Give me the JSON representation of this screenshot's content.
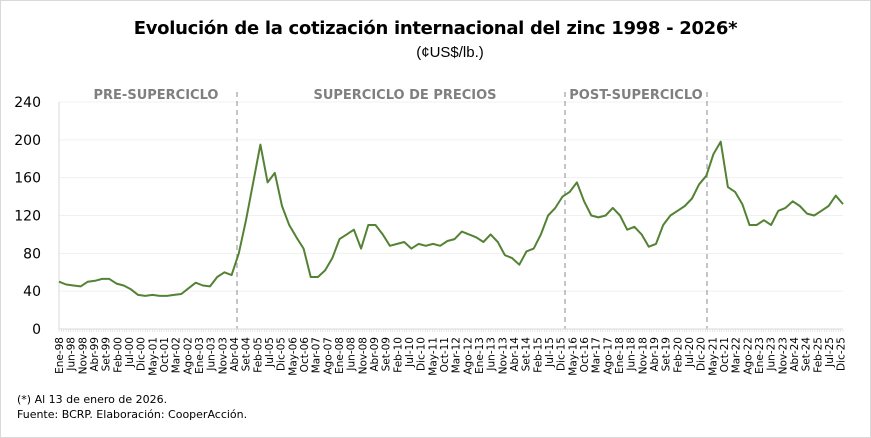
{
  "chart_data": {
    "type": "line",
    "title": "Evolución de la cotización internacional del zinc 1998 -  2026*",
    "subtitle": "(¢US$/lb.)",
    "xlabel": "",
    "ylabel": "",
    "ylim": [
      0,
      240
    ],
    "yticks": [
      0,
      40,
      80,
      120,
      160,
      200,
      240
    ],
    "grid": true,
    "legend": "none",
    "line_color": "#548235",
    "x_tick_labels": [
      "Ene-98",
      "Jun-98",
      "Nov-98",
      "Abr-99",
      "Set-99",
      "Feb-00",
      "Jul-00",
      "Dic-00",
      "May-01",
      "Oct-01",
      "Mar-02",
      "Ago-02",
      "Ene-03",
      "Jun-03",
      "Nov-03",
      "Abr-04",
      "Set-04",
      "Feb-05",
      "Jul-05",
      "Dic-05",
      "May-06",
      "Oct-06",
      "Mar-07",
      "Ago-07",
      "Ene-08",
      "Jun-08",
      "Nov-08",
      "Abr-09",
      "Set-09",
      "Feb-10",
      "Jul-10",
      "Dic-10",
      "May-11",
      "Oct-11",
      "Mar-12",
      "Ago-12",
      "Ene-13",
      "Jun-13",
      "Nov-13",
      "Abr-14",
      "Set-14",
      "Feb-15",
      "Jul-15",
      "Dic-15",
      "May-16",
      "Oct-16",
      "Mar-17",
      "Ago-17",
      "Ene-18",
      "Jun-18",
      "Nov-18",
      "Abr-19",
      "Set-19",
      "Feb-20",
      "Jul-20",
      "Dic-20",
      "May-21",
      "Oct-21",
      "Mar-22",
      "Ago-22",
      "Ene-23",
      "Jun-23",
      "Nov-23",
      "Abr-24",
      "Set-24",
      "Feb-25",
      "Jul-25",
      "Dic-25"
    ],
    "periods": [
      {
        "label": "PRE-SUPERCICLO",
        "start": "Ene-98",
        "end": "Abr-04"
      },
      {
        "label": "SUPERCICLO DE PRECIOS",
        "start": "Abr-04",
        "end": "Dic-15"
      },
      {
        "label": "POST-SUPERCICLO",
        "start": "Dic-15",
        "end": "Ene-21"
      }
    ],
    "series": [
      {
        "name": "Zinc",
        "x_start": "Ene-98",
        "step_months": 5,
        "values": [
          50,
          47,
          46,
          45,
          50,
          51,
          53,
          53,
          48,
          46,
          42,
          36,
          35,
          36,
          35,
          35,
          36,
          37,
          43,
          49,
          46,
          45,
          55,
          60,
          57,
          80,
          115,
          155,
          195,
          155,
          165,
          130,
          110,
          97,
          85,
          55,
          55,
          62,
          75,
          95,
          100,
          105,
          85,
          110,
          110,
          100,
          88,
          90,
          92,
          85,
          90,
          88,
          90,
          88,
          93,
          95,
          103,
          100,
          97,
          92,
          100,
          92,
          78,
          75,
          68,
          82,
          85,
          100,
          120,
          128,
          140,
          145,
          155,
          135,
          120,
          118,
          120,
          128,
          120,
          105,
          108,
          100,
          87,
          90,
          110,
          120,
          125,
          130,
          138,
          153,
          162,
          185,
          198,
          150,
          145,
          132,
          110,
          110,
          115,
          110,
          125,
          128,
          135,
          130,
          122,
          120,
          125,
          130,
          141,
          132
        ]
      }
    ]
  },
  "notes": {
    "line1": "(*) Al 13 de enero de 2026.",
    "line2": "Fuente: BCRP.  Elaboración: CooperAcción."
  }
}
